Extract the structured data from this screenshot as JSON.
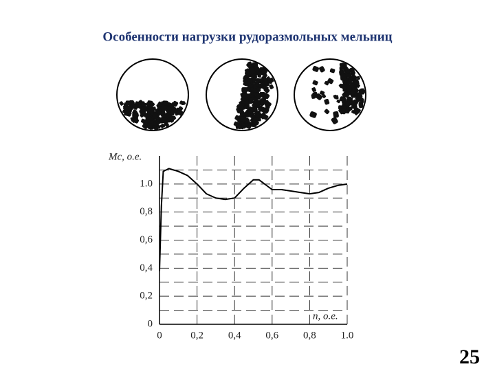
{
  "slide": {
    "title": "Особенности нагрузки рудоразмольных мельниц",
    "page_number": "25"
  },
  "chart_data": {
    "type": "line",
    "ylabel": "Mс, о.е.",
    "xlabel": "n, о.е.",
    "xlim": [
      0,
      1
    ],
    "ylim": [
      0,
      1.2
    ],
    "xticks": [
      0,
      {
        "value": 0.2,
        "label": "0,2"
      },
      {
        "value": 0.4,
        "label": "0,4"
      },
      {
        "value": 0.6,
        "label": "0,6"
      },
      {
        "value": 0.8,
        "label": "0,8"
      },
      {
        "value": 1,
        "label": "1.0"
      }
    ],
    "yticks": [
      0,
      {
        "value": 0.2,
        "label": "0,2"
      },
      {
        "value": 0.4,
        "label": "0,4"
      },
      {
        "value": 0.6,
        "label": "0,6"
      },
      {
        "value": 0.8,
        "label": "0,8"
      },
      {
        "value": 1,
        "label": "1.0"
      }
    ],
    "minor_yticks": [
      0.1,
      0.3,
      0.5,
      0.7,
      0.9,
      1.1
    ],
    "grid": true,
    "series": [
      {
        "color": "#000000",
        "x": [
          0,
          0.01,
          0.02,
          0.05,
          0.1,
          0.15,
          0.2,
          0.25,
          0.3,
          0.35,
          0.4,
          0.45,
          0.5,
          0.53,
          0.57,
          0.6,
          0.65,
          0.7,
          0.75,
          0.8,
          0.85,
          0.9,
          0.95,
          1.0
        ],
        "values": [
          0.38,
          0.84,
          1.09,
          1.11,
          1.09,
          1.06,
          1.0,
          0.93,
          0.9,
          0.89,
          0.9,
          0.97,
          1.03,
          1.03,
          0.99,
          0.96,
          0.96,
          0.95,
          0.94,
          0.93,
          0.94,
          0.97,
          0.99,
          1.0
        ]
      }
    ]
  }
}
